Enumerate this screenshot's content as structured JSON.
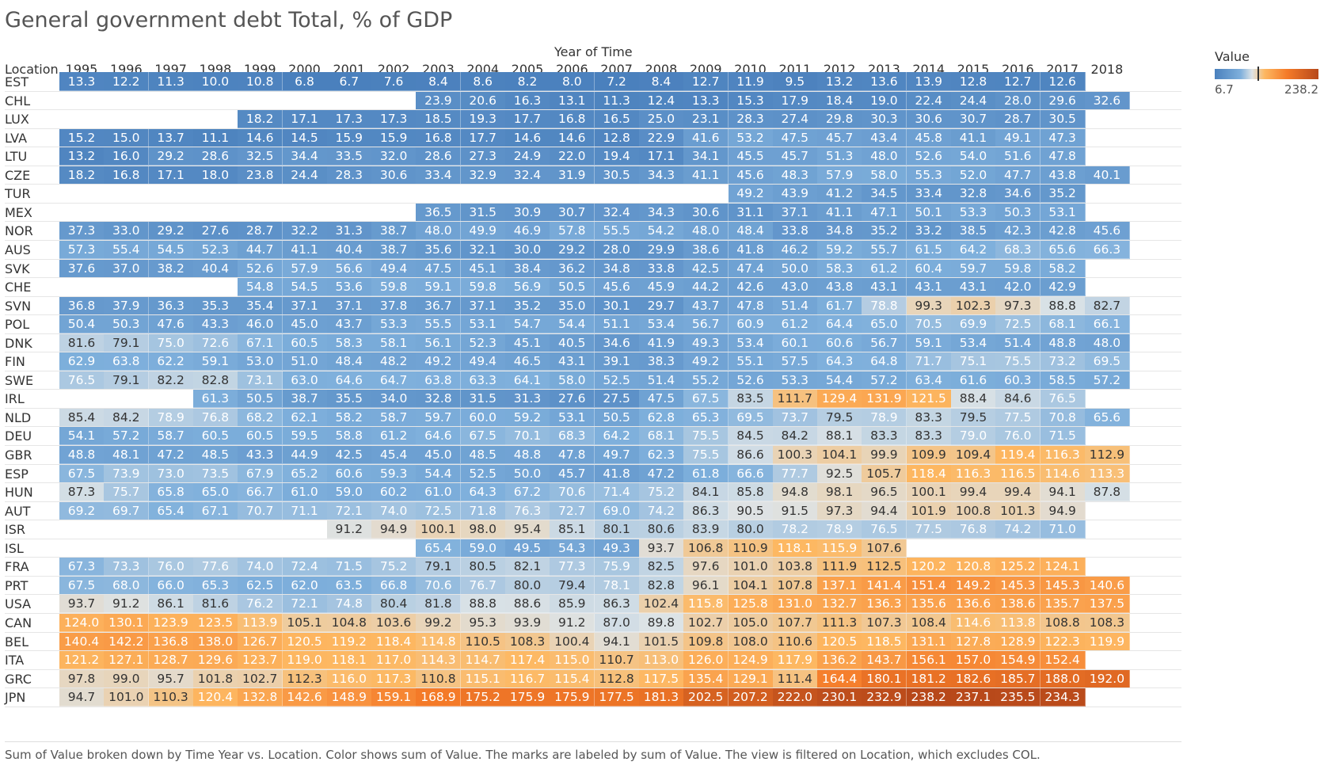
{
  "title": "General government debt Total, % of GDP",
  "column_header": "Year of Time",
  "row_header": "Location",
  "legend": {
    "title": "Value",
    "min_label": "6.7",
    "max_label": "238.2"
  },
  "caption": "Sum of Value broken down by Time Year vs. Location.  Color shows sum of Value.  The marks are labeled by sum of Value. The view is filtered on Location, which excludes COL.",
  "chart_data": {
    "type": "heatmap",
    "title": "General government debt Total, % of GDP",
    "xlabel": "Year of Time",
    "ylabel": "Location",
    "color_scale": {
      "min": 6.7,
      "max": 238.2,
      "low_color": "#4a80bd",
      "mid_color": "#dde3e6",
      "high_color": "#b7481a"
    },
    "years": [
      "1995",
      "1996",
      "1997",
      "1998",
      "1999",
      "2000",
      "2001",
      "2002",
      "2003",
      "2004",
      "2005",
      "2006",
      "2007",
      "2008",
      "2009",
      "2010",
      "2011",
      "2012",
      "2013",
      "2014",
      "2015",
      "2016",
      "2017",
      "2018"
    ],
    "rows": [
      {
        "location": "EST",
        "values": [
          13.3,
          12.2,
          11.3,
          10.0,
          10.8,
          6.8,
          6.7,
          7.6,
          8.4,
          8.6,
          8.2,
          8.0,
          7.2,
          8.4,
          12.7,
          11.9,
          9.5,
          13.2,
          13.6,
          13.9,
          12.8,
          12.7,
          12.6,
          null
        ]
      },
      {
        "location": "CHL",
        "values": [
          null,
          null,
          null,
          null,
          null,
          null,
          null,
          null,
          23.9,
          20.6,
          16.3,
          13.1,
          11.3,
          12.4,
          13.3,
          15.3,
          17.9,
          18.4,
          19.0,
          22.4,
          24.4,
          28.0,
          29.6,
          32.6
        ]
      },
      {
        "location": "LUX",
        "values": [
          null,
          null,
          null,
          null,
          18.2,
          17.1,
          17.3,
          17.3,
          18.5,
          19.3,
          17.7,
          16.8,
          16.5,
          25.0,
          23.1,
          28.3,
          27.4,
          29.8,
          30.3,
          30.6,
          30.7,
          28.7,
          30.5,
          null
        ]
      },
      {
        "location": "LVA",
        "values": [
          15.2,
          15.0,
          13.7,
          11.1,
          14.6,
          14.5,
          15.9,
          15.9,
          16.8,
          17.7,
          14.6,
          14.6,
          12.8,
          22.9,
          41.6,
          53.2,
          47.5,
          45.7,
          43.4,
          45.8,
          41.1,
          49.1,
          47.3,
          null
        ]
      },
      {
        "location": "LTU",
        "values": [
          13.2,
          16.0,
          29.2,
          28.6,
          32.5,
          34.4,
          33.5,
          32.0,
          28.6,
          27.3,
          24.9,
          22.0,
          19.4,
          17.1,
          34.1,
          45.5,
          45.7,
          51.3,
          48.0,
          52.6,
          54.0,
          51.6,
          47.8,
          null
        ]
      },
      {
        "location": "CZE",
        "values": [
          18.2,
          16.8,
          17.1,
          18.0,
          23.8,
          24.4,
          28.3,
          30.6,
          33.4,
          32.9,
          32.4,
          31.9,
          30.5,
          34.3,
          41.1,
          45.6,
          48.3,
          57.9,
          58.0,
          55.3,
          52.0,
          47.7,
          43.8,
          40.1
        ]
      },
      {
        "location": "TUR",
        "values": [
          null,
          null,
          null,
          null,
          null,
          null,
          null,
          null,
          null,
          null,
          null,
          null,
          null,
          null,
          null,
          49.2,
          43.9,
          41.2,
          34.5,
          33.4,
          32.8,
          34.6,
          35.2,
          null
        ]
      },
      {
        "location": "MEX",
        "values": [
          null,
          null,
          null,
          null,
          null,
          null,
          null,
          null,
          36.5,
          31.5,
          30.9,
          30.7,
          32.4,
          34.3,
          30.6,
          31.1,
          37.1,
          41.1,
          47.1,
          50.1,
          53.3,
          50.3,
          53.1,
          null
        ]
      },
      {
        "location": "NOR",
        "values": [
          37.3,
          33.0,
          29.2,
          27.6,
          28.7,
          32.2,
          31.3,
          38.7,
          48.0,
          49.9,
          46.9,
          57.8,
          55.5,
          54.2,
          48.0,
          48.4,
          33.8,
          34.8,
          35.2,
          33.2,
          38.5,
          42.3,
          42.8,
          45.6
        ]
      },
      {
        "location": "AUS",
        "values": [
          57.3,
          55.4,
          54.5,
          52.3,
          44.7,
          41.1,
          40.4,
          38.7,
          35.6,
          32.1,
          30.0,
          29.2,
          28.0,
          29.9,
          38.6,
          41.8,
          46.2,
          59.2,
          55.7,
          61.5,
          64.2,
          68.3,
          65.6,
          66.3
        ]
      },
      {
        "location": "SVK",
        "values": [
          37.6,
          37.0,
          38.2,
          40.4,
          52.6,
          57.9,
          56.6,
          49.4,
          47.5,
          45.1,
          38.4,
          36.2,
          34.8,
          33.8,
          42.5,
          47.4,
          50.0,
          58.3,
          61.2,
          60.4,
          59.7,
          59.8,
          58.2,
          null
        ]
      },
      {
        "location": "CHE",
        "values": [
          null,
          null,
          null,
          null,
          54.8,
          54.5,
          53.6,
          59.8,
          59.1,
          59.8,
          56.9,
          50.5,
          45.6,
          45.9,
          44.2,
          42.6,
          43.0,
          43.8,
          43.1,
          43.1,
          43.1,
          42.0,
          42.9,
          null
        ]
      },
      {
        "location": "SVN",
        "values": [
          36.8,
          37.9,
          36.3,
          35.3,
          35.4,
          37.1,
          37.1,
          37.8,
          36.7,
          37.1,
          35.2,
          35.0,
          30.1,
          29.7,
          43.7,
          47.8,
          51.4,
          61.7,
          78.8,
          99.3,
          102.3,
          97.3,
          88.8,
          82.7
        ]
      },
      {
        "location": "POL",
        "values": [
          50.4,
          50.3,
          47.6,
          43.3,
          46.0,
          45.0,
          43.7,
          53.3,
          55.5,
          53.1,
          54.7,
          54.4,
          51.1,
          53.4,
          56.7,
          60.9,
          61.2,
          64.4,
          65.0,
          70.5,
          69.9,
          72.5,
          68.1,
          66.1
        ]
      },
      {
        "location": "DNK",
        "values": [
          81.6,
          79.1,
          75.0,
          72.6,
          67.1,
          60.5,
          58.3,
          58.1,
          56.1,
          52.3,
          45.1,
          40.5,
          34.6,
          41.9,
          49.3,
          53.4,
          60.1,
          60.6,
          56.7,
          59.1,
          53.4,
          51.4,
          48.8,
          48.0
        ]
      },
      {
        "location": "FIN",
        "values": [
          62.9,
          63.8,
          62.2,
          59.1,
          53.0,
          51.0,
          48.4,
          48.2,
          49.2,
          49.4,
          46.5,
          43.1,
          39.1,
          38.3,
          49.2,
          55.1,
          57.5,
          64.3,
          64.8,
          71.7,
          75.1,
          75.5,
          73.2,
          69.5
        ]
      },
      {
        "location": "SWE",
        "values": [
          76.5,
          79.1,
          82.2,
          82.8,
          73.1,
          63.0,
          64.6,
          64.7,
          63.8,
          63.3,
          64.1,
          58.0,
          52.5,
          51.4,
          55.2,
          52.6,
          53.3,
          54.4,
          57.2,
          63.4,
          61.6,
          60.3,
          58.5,
          57.2
        ]
      },
      {
        "location": "IRL",
        "values": [
          null,
          null,
          null,
          61.3,
          50.5,
          38.7,
          35.5,
          34.0,
          32.8,
          31.5,
          31.3,
          27.6,
          27.5,
          47.5,
          67.5,
          83.5,
          111.7,
          129.4,
          131.9,
          121.5,
          88.4,
          84.6,
          76.5,
          null
        ]
      },
      {
        "location": "NLD",
        "values": [
          85.4,
          84.2,
          78.9,
          76.8,
          68.2,
          62.1,
          58.2,
          58.7,
          59.7,
          60.0,
          59.2,
          53.1,
          50.5,
          62.8,
          65.3,
          69.5,
          73.7,
          79.5,
          78.9,
          83.3,
          79.5,
          77.5,
          70.8,
          65.6
        ]
      },
      {
        "location": "DEU",
        "values": [
          54.1,
          57.2,
          58.7,
          60.5,
          60.5,
          59.5,
          58.8,
          61.2,
          64.6,
          67.5,
          70.1,
          68.3,
          64.2,
          68.1,
          75.5,
          84.5,
          84.2,
          88.1,
          83.3,
          83.3,
          79.0,
          76.0,
          71.5,
          null
        ]
      },
      {
        "location": "GBR",
        "values": [
          48.8,
          48.1,
          47.2,
          48.5,
          43.3,
          44.9,
          42.5,
          45.4,
          45.0,
          48.5,
          48.8,
          47.8,
          49.7,
          62.3,
          75.5,
          86.6,
          100.3,
          104.1,
          99.9,
          109.9,
          109.4,
          119.4,
          116.3,
          112.9
        ]
      },
      {
        "location": "ESP",
        "values": [
          67.5,
          73.9,
          73.0,
          73.5,
          67.9,
          65.2,
          60.6,
          59.3,
          54.4,
          52.5,
          50.0,
          45.7,
          41.8,
          47.2,
          61.8,
          66.6,
          77.7,
          92.5,
          105.7,
          118.4,
          116.3,
          116.5,
          114.6,
          113.3
        ]
      },
      {
        "location": "HUN",
        "values": [
          87.3,
          75.7,
          65.8,
          65.0,
          66.7,
          61.0,
          59.0,
          60.2,
          61.0,
          64.3,
          67.2,
          70.6,
          71.4,
          75.2,
          84.1,
          85.8,
          94.8,
          98.1,
          96.5,
          100.1,
          99.4,
          99.4,
          94.1,
          87.8
        ]
      },
      {
        "location": "AUT",
        "values": [
          69.2,
          69.7,
          65.4,
          67.1,
          70.7,
          71.1,
          72.1,
          74.0,
          72.5,
          71.8,
          76.3,
          72.7,
          69.0,
          74.2,
          86.3,
          90.5,
          91.5,
          97.3,
          94.4,
          101.9,
          100.8,
          101.3,
          94.9,
          null
        ]
      },
      {
        "location": "ISR",
        "values": [
          null,
          null,
          null,
          null,
          null,
          null,
          91.2,
          94.9,
          100.1,
          98.0,
          95.4,
          85.1,
          80.1,
          80.6,
          83.9,
          80.0,
          78.2,
          78.9,
          76.5,
          77.5,
          76.8,
          74.2,
          71.0,
          null
        ]
      },
      {
        "location": "ISL",
        "values": [
          null,
          null,
          null,
          null,
          null,
          null,
          null,
          null,
          65.4,
          59.0,
          49.5,
          54.3,
          49.3,
          93.7,
          106.8,
          110.9,
          118.1,
          115.9,
          107.6,
          null,
          null,
          null,
          null,
          null
        ]
      },
      {
        "location": "FRA",
        "values": [
          67.3,
          73.3,
          76.0,
          77.6,
          74.0,
          72.4,
          71.5,
          75.2,
          79.1,
          80.5,
          82.1,
          77.3,
          75.9,
          82.5,
          97.6,
          101.0,
          103.8,
          111.9,
          112.5,
          120.2,
          120.8,
          125.2,
          124.1,
          null
        ]
      },
      {
        "location": "PRT",
        "values": [
          67.5,
          68.0,
          66.0,
          65.3,
          62.5,
          62.0,
          63.5,
          66.8,
          70.6,
          76.7,
          80.0,
          79.4,
          78.1,
          82.8,
          96.1,
          104.1,
          107.8,
          137.1,
          141.4,
          151.4,
          149.2,
          145.3,
          145.3,
          140.6
        ]
      },
      {
        "location": "USA",
        "values": [
          93.7,
          91.2,
          86.1,
          81.6,
          76.2,
          72.1,
          74.8,
          80.4,
          81.8,
          88.8,
          88.6,
          85.9,
          86.3,
          102.4,
          115.8,
          125.8,
          131.0,
          132.7,
          136.3,
          135.6,
          136.6,
          138.6,
          135.7,
          137.5
        ]
      },
      {
        "location": "CAN",
        "values": [
          124.0,
          130.1,
          123.9,
          123.5,
          113.9,
          105.1,
          104.8,
          103.6,
          99.2,
          95.3,
          93.9,
          91.2,
          87.0,
          89.8,
          102.7,
          105.0,
          107.7,
          111.3,
          107.3,
          108.4,
          114.6,
          113.8,
          108.8,
          108.3
        ]
      },
      {
        "location": "BEL",
        "values": [
          140.4,
          142.2,
          136.8,
          138.0,
          126.7,
          120.5,
          119.2,
          118.4,
          114.8,
          110.5,
          108.3,
          100.4,
          94.1,
          101.5,
          109.8,
          108.0,
          110.6,
          120.5,
          118.5,
          131.1,
          127.8,
          128.9,
          122.3,
          119.9
        ]
      },
      {
        "location": "ITA",
        "values": [
          121.2,
          127.1,
          128.7,
          129.6,
          123.7,
          119.0,
          118.1,
          117.0,
          114.3,
          114.7,
          117.4,
          115.0,
          110.7,
          113.0,
          126.0,
          124.9,
          117.9,
          136.2,
          143.7,
          156.1,
          157.0,
          154.9,
          152.4,
          null
        ]
      },
      {
        "location": "GRC",
        "values": [
          97.8,
          99.0,
          95.7,
          101.8,
          102.7,
          112.3,
          116.0,
          117.3,
          110.8,
          115.1,
          116.7,
          115.4,
          112.8,
          117.5,
          135.4,
          129.1,
          111.4,
          164.4,
          180.1,
          181.2,
          182.6,
          185.7,
          188.0,
          192.0
        ]
      },
      {
        "location": "JPN",
        "values": [
          94.7,
          101.0,
          110.3,
          120.4,
          132.8,
          142.6,
          148.9,
          159.1,
          168.9,
          175.2,
          175.9,
          175.9,
          177.5,
          181.3,
          202.5,
          207.2,
          222.0,
          230.1,
          232.9,
          238.2,
          237.1,
          235.5,
          234.3,
          null
        ]
      }
    ]
  }
}
